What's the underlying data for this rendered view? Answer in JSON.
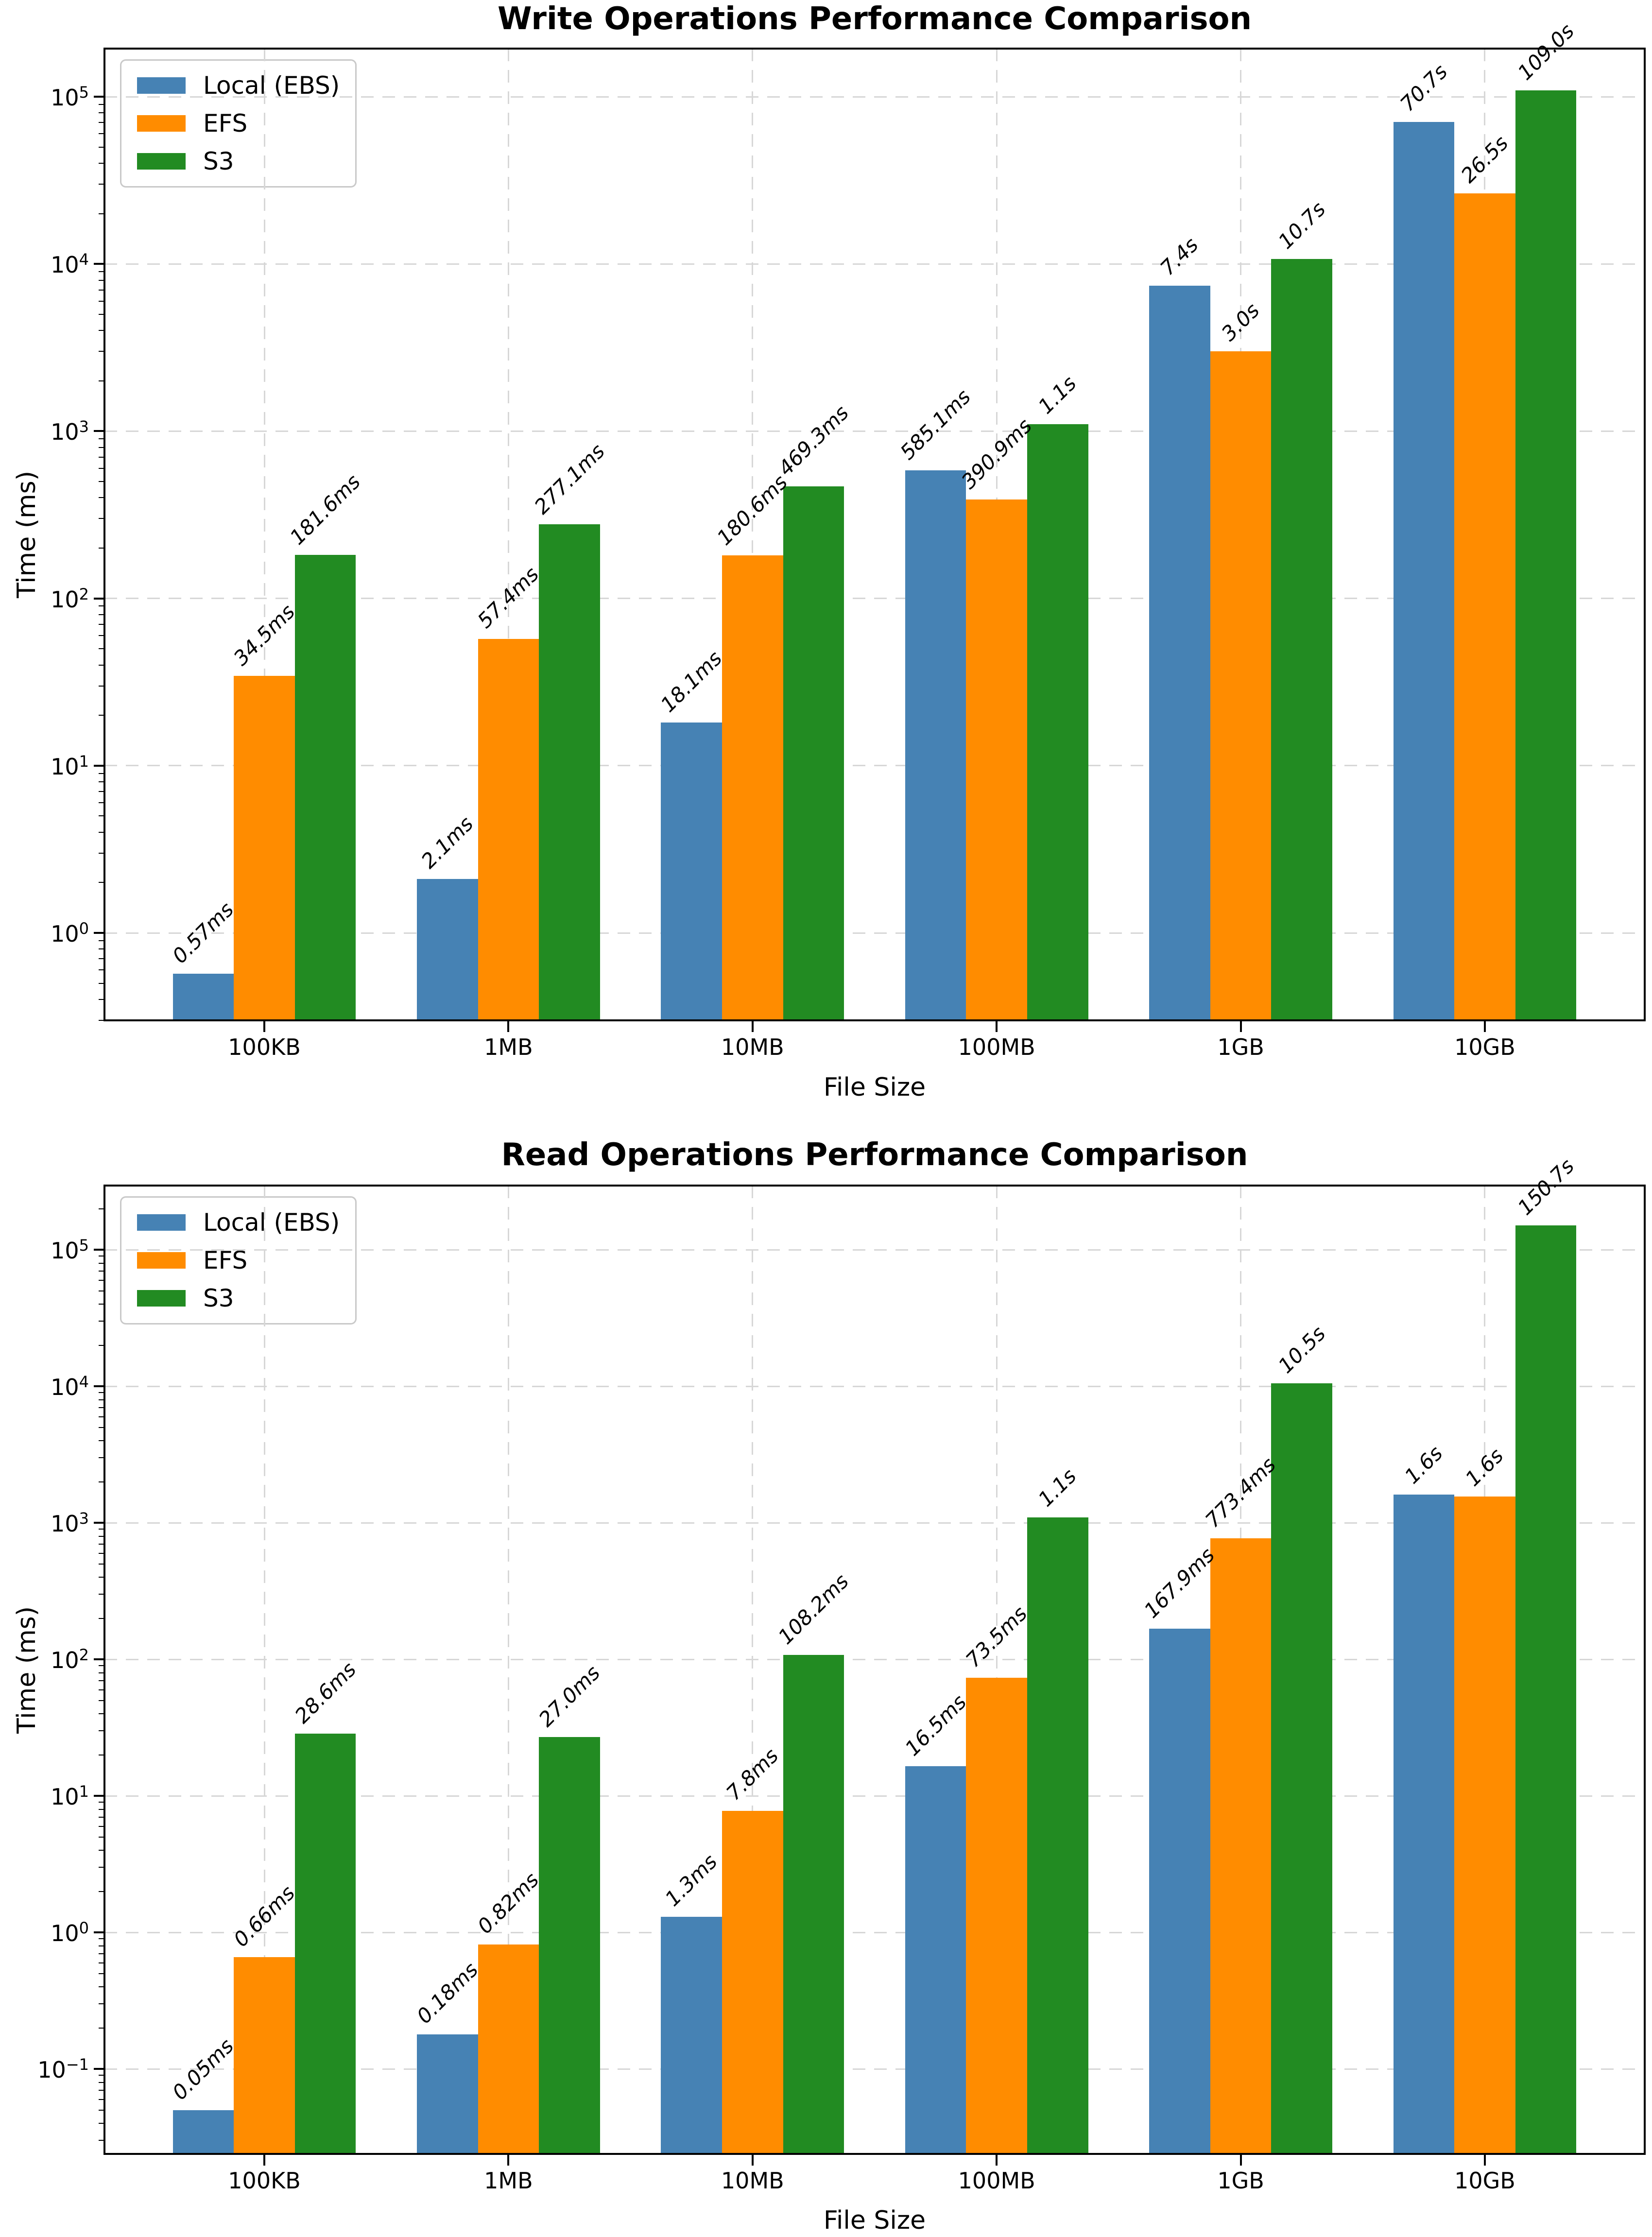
{
  "figure": {
    "background": "#ffffff"
  },
  "chart_data": [
    {
      "type": "bar",
      "title": "Write Operations Performance Comparison",
      "xlabel": "File Size",
      "ylabel": "Time (ms)",
      "yscale": "log",
      "grid": true,
      "legend_location": "upper left",
      "categories": [
        "100KB",
        "1MB",
        "10MB",
        "100MB",
        "1GB",
        "10GB"
      ],
      "ylim": [
        0.3,
        194000
      ],
      "ytick_exponents": [
        0,
        1,
        2,
        3,
        4,
        5
      ],
      "series": [
        {
          "name": "Local (EBS)",
          "color": "#4682B4",
          "values_ms": [
            0.57,
            2.1,
            18.1,
            585.1,
            7400,
            70700
          ],
          "labels": [
            "0.57ms",
            "2.1ms",
            "18.1ms",
            "585.1ms",
            "7.4s",
            "70.7s"
          ]
        },
        {
          "name": "EFS",
          "color": "#FF8C00",
          "values_ms": [
            34.5,
            57.4,
            180.6,
            390.9,
            3000,
            26500
          ],
          "labels": [
            "34.5ms",
            "57.4ms",
            "180.6ms",
            "390.9ms",
            "3.0s",
            "26.5s"
          ]
        },
        {
          "name": "S3",
          "color": "#228B22",
          "values_ms": [
            181.6,
            277.1,
            469.3,
            1100,
            10700,
            109000
          ],
          "labels": [
            "181.6ms",
            "277.1ms",
            "469.3ms",
            "1.1s",
            "10.7s",
            "109.0s"
          ]
        }
      ]
    },
    {
      "type": "bar",
      "title": "Read Operations Performance Comparison",
      "xlabel": "File Size",
      "ylabel": "Time (ms)",
      "yscale": "log",
      "grid": true,
      "legend_location": "upper left",
      "categories": [
        "100KB",
        "1MB",
        "10MB",
        "100MB",
        "1GB",
        "10GB"
      ],
      "ylim": [
        0.0239,
        296000
      ],
      "ytick_exponents": [
        -1,
        0,
        1,
        2,
        3,
        4,
        5
      ],
      "series": [
        {
          "name": "Local (EBS)",
          "color": "#4682B4",
          "values_ms": [
            0.05,
            0.18,
            1.3,
            16.5,
            167.9,
            1620
          ],
          "labels": [
            "0.05ms",
            "0.18ms",
            "1.3ms",
            "16.5ms",
            "167.9ms",
            "1.6s"
          ]
        },
        {
          "name": "EFS",
          "color": "#FF8C00",
          "values_ms": [
            0.66,
            0.82,
            7.8,
            73.5,
            773.4,
            1560
          ],
          "labels": [
            "0.66ms",
            "0.82ms",
            "7.8ms",
            "73.5ms",
            "773.4ms",
            "1.6s"
          ]
        },
        {
          "name": "S3",
          "color": "#228B22",
          "values_ms": [
            28.6,
            27.0,
            108.2,
            1100,
            10500,
            150700
          ],
          "labels": [
            "28.6ms",
            "27.0ms",
            "108.2ms",
            "1.1s",
            "10.5s",
            "150.7s"
          ]
        }
      ]
    }
  ]
}
